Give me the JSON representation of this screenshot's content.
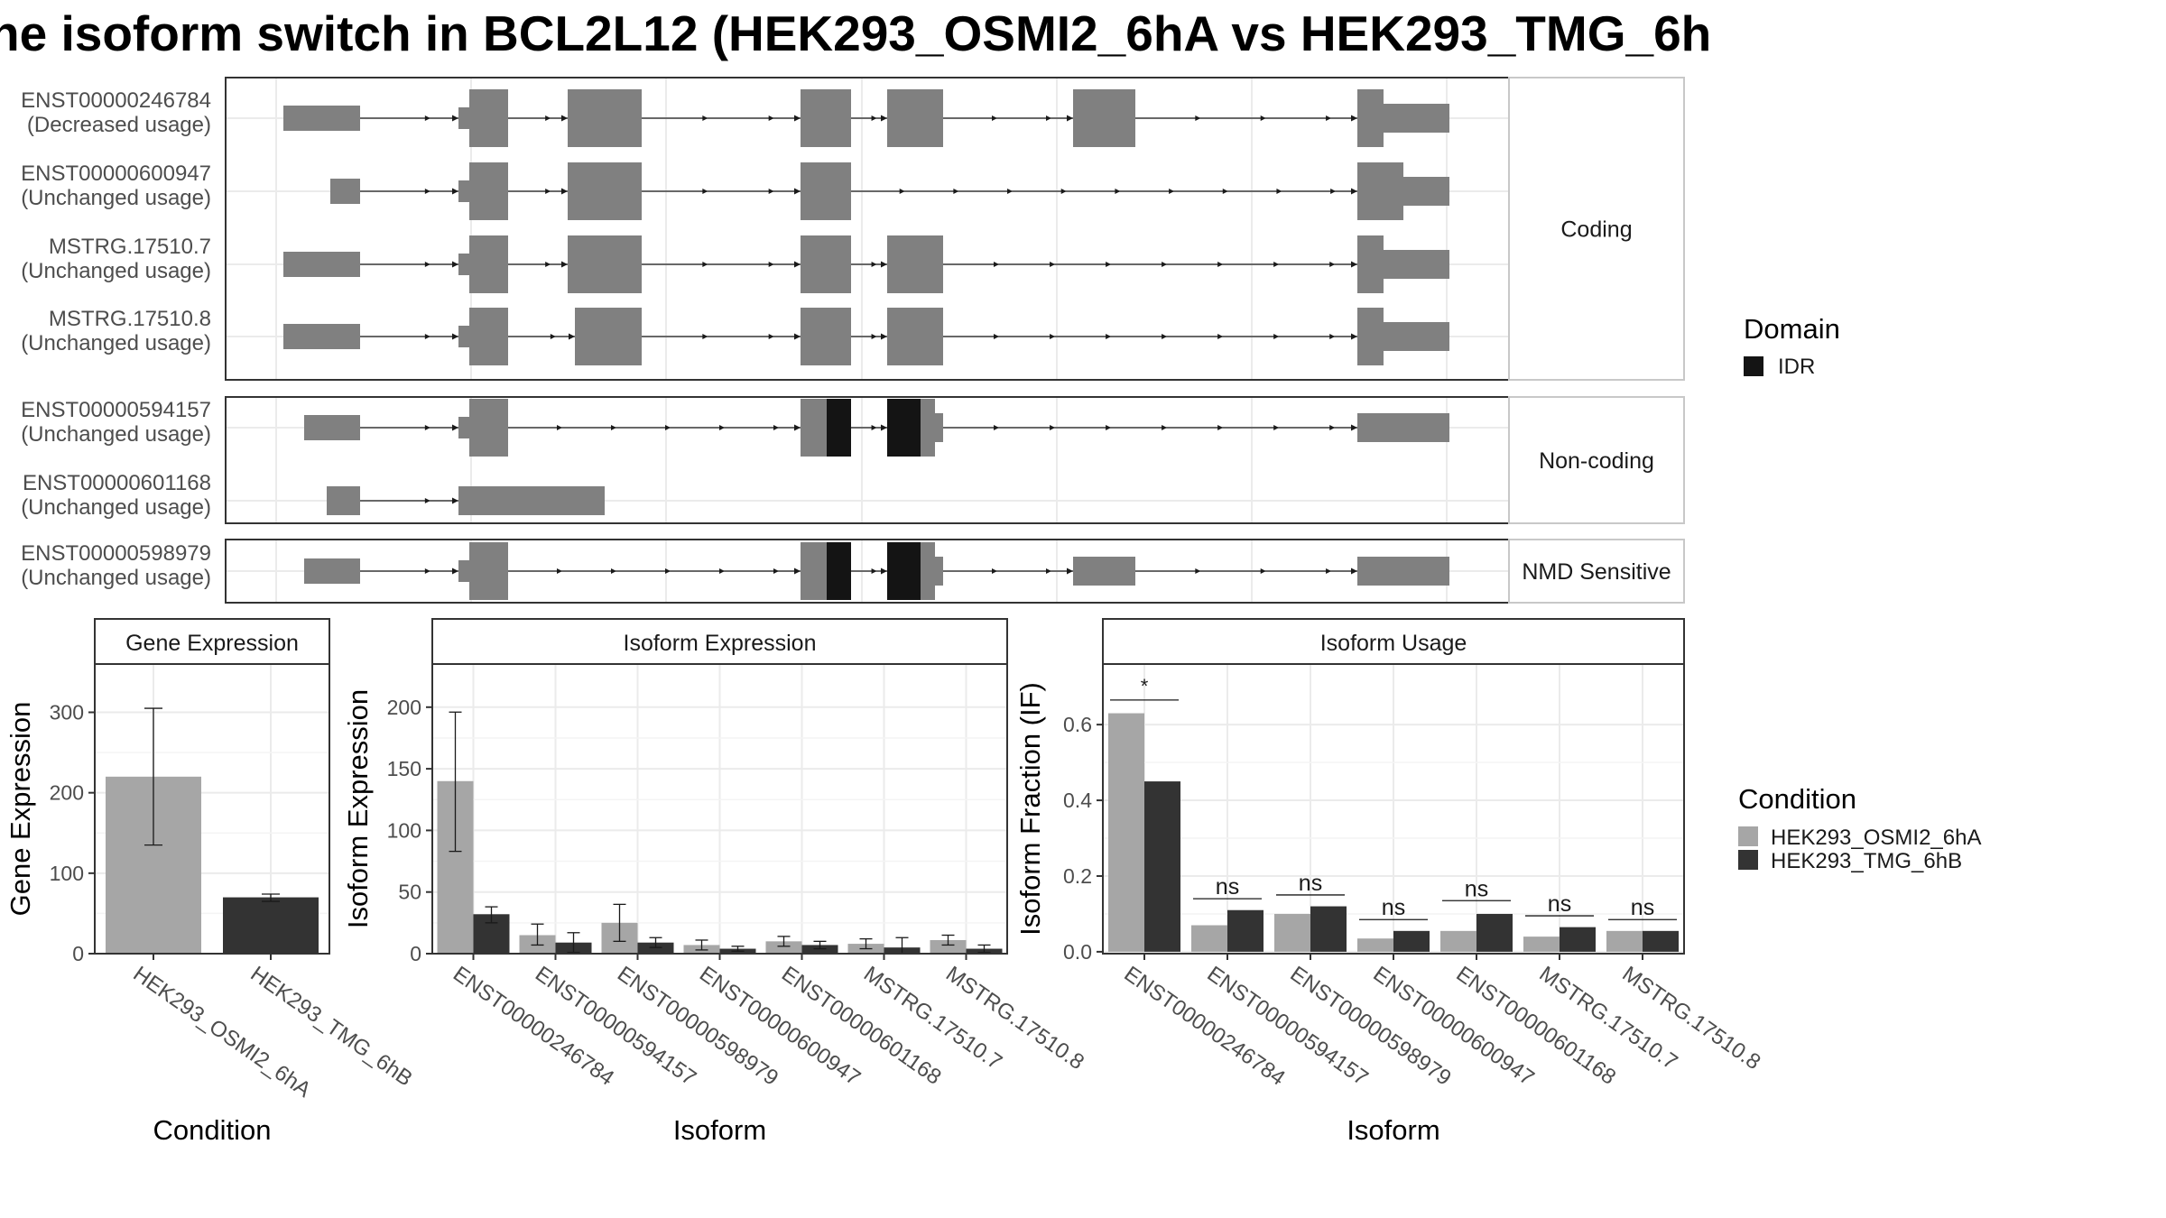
{
  "title": "ne isoform switch in BCL2L12 (HEK293_OSMI2_6hA vs HEK293_TMG_6h",
  "colors": {
    "exon": "#808080",
    "idr": "#141414",
    "cond_a": "#a6a6a6",
    "cond_b": "#333333",
    "grid": "#ebebeb",
    "panel_border": "#333333"
  },
  "structure": {
    "legend": {
      "title": "Domain",
      "items": [
        {
          "label": "IDR",
          "color": "#141414"
        }
      ]
    },
    "panels": [
      {
        "label": "Coding",
        "transcripts": [
          {
            "id": "ENST00000246784",
            "usage": "(Decreased usage)"
          },
          {
            "id": "ENST00000600947",
            "usage": "(Unchanged usage)"
          },
          {
            "id": "MSTRG.17510.7",
            "usage": "(Unchanged usage)"
          },
          {
            "id": "MSTRG.17510.8",
            "usage": "(Unchanged usage)"
          }
        ]
      },
      {
        "label": "Non-coding",
        "transcripts": [
          {
            "id": "ENST00000594157",
            "usage": "(Unchanged usage)"
          },
          {
            "id": "ENST00000601168",
            "usage": "(Unchanged usage)"
          }
        ]
      },
      {
        "label": "NMD Sensitive",
        "transcripts": [
          {
            "id": "ENST00000598979",
            "usage": "(Unchanged usage)"
          }
        ]
      }
    ]
  },
  "chart_data": [
    {
      "type": "bar",
      "title": "Gene Expression",
      "xlabel": "Condition",
      "ylabel": "Gene Expression",
      "ylim": [
        0,
        360
      ],
      "yticks": [
        0,
        100,
        200,
        300
      ],
      "categories": [
        "HEK293_OSMI2_6hA",
        "HEK293_TMG_6hB"
      ],
      "values": [
        220,
        70
      ],
      "errors_low": [
        135,
        65
      ],
      "errors_high": [
        305,
        74
      ]
    },
    {
      "type": "bar",
      "title": "Isoform Expression",
      "xlabel": "Isoform",
      "ylabel": "Isoform Expression",
      "ylim": [
        0,
        235
      ],
      "yticks": [
        0,
        50,
        100,
        150,
        200
      ],
      "categories": [
        "ENST00000246784",
        "ENST00000594157",
        "ENST00000598979",
        "ENST00000600947",
        "ENST00000601168",
        "MSTRG.17510.7",
        "MSTRG.17510.8"
      ],
      "series": [
        {
          "name": "HEK293_OSMI2_6hA",
          "values": [
            140,
            15,
            25,
            7,
            10,
            8,
            11
          ],
          "err_low": [
            83,
            7,
            10,
            3,
            6,
            4,
            7
          ],
          "err_high": [
            196,
            24,
            40,
            11,
            14,
            12,
            15
          ]
        },
        {
          "name": "HEK293_TMG_6hB",
          "values": [
            32,
            9,
            9,
            4,
            7,
            5,
            4
          ],
          "err_low": [
            25,
            1,
            5,
            2,
            4,
            0,
            1
          ],
          "err_high": [
            38,
            17,
            13,
            6,
            10,
            13,
            7
          ]
        }
      ]
    },
    {
      "type": "bar",
      "title": "Isoform Usage",
      "xlabel": "Isoform",
      "ylabel": "Isoform Fraction (IF)",
      "ylim": [
        -0.005,
        0.76
      ],
      "yticks": [
        0.0,
        0.2,
        0.4,
        0.6
      ],
      "ytick_labels": [
        "0.0",
        "0.2",
        "0.4",
        "0.6"
      ],
      "categories": [
        "ENST00000246784",
        "ENST00000594157",
        "ENST00000598979",
        "ENST00000600947",
        "ENST00000601168",
        "MSTRG.17510.7",
        "MSTRG.17510.8"
      ],
      "series": [
        {
          "name": "HEK293_OSMI2_6hA",
          "values": [
            0.63,
            0.07,
            0.1,
            0.035,
            0.055,
            0.04,
            0.055
          ]
        },
        {
          "name": "HEK293_TMG_6hB",
          "values": [
            0.45,
            0.11,
            0.12,
            0.055,
            0.1,
            0.065,
            0.055
          ]
        }
      ],
      "significance": [
        "*",
        "ns",
        "ns",
        "ns",
        "ns",
        "ns",
        "ns"
      ]
    }
  ],
  "condition_legend": {
    "title": "Condition",
    "items": [
      {
        "label": "HEK293_OSMI2_6hA",
        "color": "#a6a6a6"
      },
      {
        "label": "HEK293_TMG_6hB",
        "color": "#333333"
      }
    ]
  }
}
